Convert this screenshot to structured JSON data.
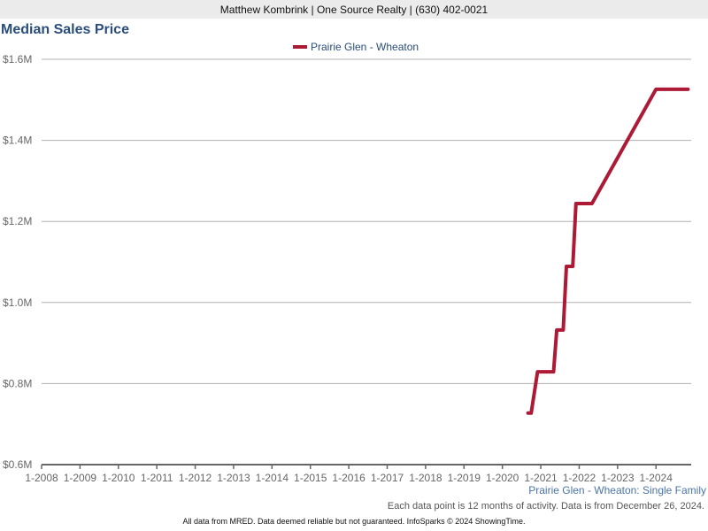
{
  "header": {
    "agent_line": "Matthew Kombrink | One Source Realty | (630) 402-0021"
  },
  "colors": {
    "series": "#ad1a35",
    "title": "#2a4d7a",
    "grid": "#b0b0b0"
  },
  "chart_data": {
    "type": "line",
    "title": "Median Sales Price",
    "xlabel": "",
    "ylabel": "",
    "xlim": [
      "2008-01",
      "2024-12"
    ],
    "ylim": [
      600000,
      1600000
    ],
    "yticks": [
      {
        "v": 600000,
        "label": "$0.6M"
      },
      {
        "v": 800000,
        "label": "$0.8M"
      },
      {
        "v": 1000000,
        "label": "$1.0M"
      },
      {
        "v": 1200000,
        "label": "$1.2M"
      },
      {
        "v": 1400000,
        "label": "$1.4M"
      },
      {
        "v": 1600000,
        "label": "$1.6M"
      }
    ],
    "xticks": [
      "1-2008",
      "1-2009",
      "1-2010",
      "1-2011",
      "1-2012",
      "1-2013",
      "1-2014",
      "1-2015",
      "1-2016",
      "1-2017",
      "1-2018",
      "1-2019",
      "1-2020",
      "1-2021",
      "1-2022",
      "1-2023",
      "1-2024"
    ],
    "grid": true,
    "legend_placement": "top-center",
    "series": [
      {
        "name": "Prairie Glen - Wheaton",
        "points": [
          [
            "2020-09",
            727000
          ],
          [
            "2020-10",
            727000
          ],
          [
            "2020-12",
            829000
          ],
          [
            "2021-05",
            829000
          ],
          [
            "2021-06",
            932000
          ],
          [
            "2021-08",
            932000
          ],
          [
            "2021-09",
            1089000
          ],
          [
            "2021-11",
            1089000
          ],
          [
            "2021-12",
            1244000
          ],
          [
            "2022-05",
            1244000
          ],
          [
            "2024-01",
            1526000
          ],
          [
            "2024-11",
            1526000
          ]
        ]
      }
    ]
  },
  "subtitle": "Prairie Glen - Wheaton: Single Family",
  "note": "Each data point is 12 months of activity. Data is from December 26, 2024.",
  "footer": "All data from MRED. Data deemed reliable but not guaranteed. InfoSparks © 2024 ShowingTime."
}
